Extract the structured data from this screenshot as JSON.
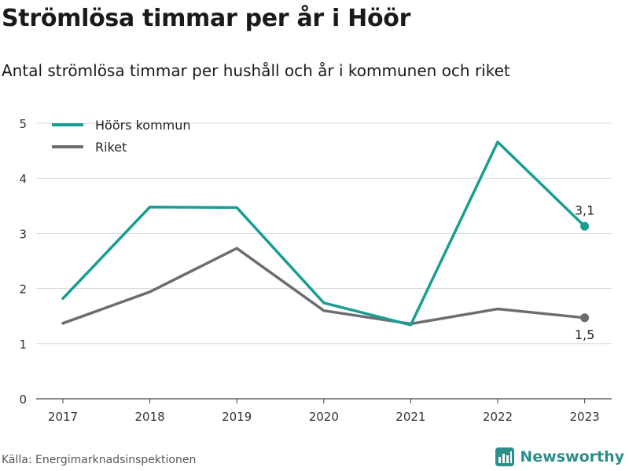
{
  "header": {
    "title": "Strömlösa timmar per år i Höör",
    "subtitle": "Antal strömlösa timmar per hushåll och år i kommunen och riket"
  },
  "footer": {
    "source": "Källa: Energimarknadsinspektionen",
    "brand": "Newsworthy",
    "brand_icon": "bar-chart-logo-icon"
  },
  "chart_data": {
    "type": "line",
    "x": [
      "2017",
      "2018",
      "2019",
      "2020",
      "2021",
      "2022",
      "2023"
    ],
    "ylim": [
      0,
      5
    ],
    "yticks": [
      0,
      1,
      2,
      3,
      4,
      5
    ],
    "grid": true,
    "legend_position": "top-left",
    "series": [
      {
        "name": "Höörs kommun",
        "color": "#1a9e92",
        "values": [
          1.82,
          3.48,
          3.47,
          1.74,
          1.34,
          4.66,
          3.13
        ],
        "end_label": "3,1",
        "end_label_position": "above"
      },
      {
        "name": "Riket",
        "color": "#6d6c71",
        "values": [
          1.37,
          1.94,
          2.73,
          1.6,
          1.36,
          1.63,
          1.47
        ],
        "end_label": "1,5",
        "end_label_position": "below"
      }
    ]
  }
}
